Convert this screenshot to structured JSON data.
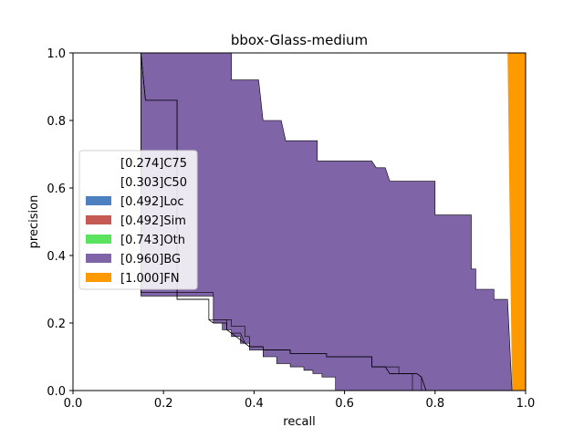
{
  "chart_data": {
    "type": "area",
    "title": "bbox-Glass-medium",
    "xlabel": "recall",
    "ylabel": "precision",
    "xlim": [
      0.0,
      1.0
    ],
    "ylim": [
      0.0,
      1.0
    ],
    "xticks": [
      "0.0",
      "0.2",
      "0.4",
      "0.6",
      "0.8",
      "1.0"
    ],
    "yticks": [
      "0.0",
      "0.2",
      "0.4",
      "0.6",
      "0.8",
      "1.0"
    ],
    "grid": false,
    "legend_position": "center-left",
    "series": [
      {
        "name": "[0.274]C75",
        "color": "#ffffff",
        "points": [
          [
            0.0,
            1.0
          ],
          [
            0.15,
            1.0
          ],
          [
            0.15,
            0.28
          ],
          [
            0.31,
            0.28
          ],
          [
            0.31,
            0.2
          ],
          [
            0.33,
            0.2
          ],
          [
            0.33,
            0.18
          ],
          [
            0.35,
            0.18
          ],
          [
            0.35,
            0.16
          ],
          [
            0.37,
            0.16
          ],
          [
            0.37,
            0.14
          ],
          [
            0.39,
            0.14
          ],
          [
            0.39,
            0.12
          ],
          [
            0.42,
            0.12
          ],
          [
            0.42,
            0.1
          ],
          [
            0.45,
            0.1
          ],
          [
            0.45,
            0.08
          ],
          [
            0.48,
            0.08
          ],
          [
            0.48,
            0.07
          ],
          [
            0.51,
            0.07
          ],
          [
            0.51,
            0.06
          ],
          [
            0.53,
            0.06
          ],
          [
            0.53,
            0.05
          ],
          [
            0.55,
            0.05
          ],
          [
            0.55,
            0.04
          ],
          [
            0.58,
            0.04
          ],
          [
            0.58,
            0.0
          ]
        ]
      },
      {
        "name": "[0.303]C50",
        "color": "#ffffff",
        "points": [
          [
            0.0,
            1.0
          ],
          [
            0.15,
            1.0
          ],
          [
            0.15,
            0.29
          ],
          [
            0.31,
            0.29
          ],
          [
            0.31,
            0.21
          ],
          [
            0.35,
            0.21
          ],
          [
            0.35,
            0.19
          ],
          [
            0.38,
            0.19
          ],
          [
            0.38,
            0.16
          ],
          [
            0.39,
            0.16
          ],
          [
            0.39,
            0.13
          ],
          [
            0.42,
            0.13
          ],
          [
            0.42,
            0.12
          ],
          [
            0.48,
            0.12
          ],
          [
            0.48,
            0.11
          ],
          [
            0.56,
            0.11
          ],
          [
            0.56,
            0.1
          ],
          [
            0.66,
            0.1
          ],
          [
            0.66,
            0.07
          ],
          [
            0.72,
            0.07
          ],
          [
            0.72,
            0.05
          ],
          [
            0.75,
            0.05
          ],
          [
            0.75,
            0.0
          ]
        ]
      },
      {
        "name": "[0.492]Loc",
        "color": "#4c80bf",
        "points": [
          [
            0.0,
            1.0
          ],
          [
            0.15,
            1.0
          ],
          [
            0.16,
            0.86
          ],
          [
            0.23,
            0.86
          ],
          [
            0.23,
            0.27
          ],
          [
            0.3,
            0.27
          ],
          [
            0.3,
            0.21
          ],
          [
            0.31,
            0.2
          ],
          [
            0.34,
            0.2
          ],
          [
            0.34,
            0.18
          ],
          [
            0.35,
            0.17
          ],
          [
            0.36,
            0.16
          ],
          [
            0.37,
            0.15
          ],
          [
            0.38,
            0.14
          ],
          [
            0.39,
            0.13
          ],
          [
            0.42,
            0.13
          ],
          [
            0.42,
            0.12
          ],
          [
            0.48,
            0.12
          ],
          [
            0.48,
            0.11
          ],
          [
            0.56,
            0.11
          ],
          [
            0.56,
            0.1
          ],
          [
            0.66,
            0.1
          ],
          [
            0.66,
            0.07
          ],
          [
            0.69,
            0.07
          ],
          [
            0.7,
            0.05
          ],
          [
            0.76,
            0.05
          ],
          [
            0.77,
            0.04
          ],
          [
            0.78,
            0.0
          ]
        ]
      },
      {
        "name": "[0.492]Sim",
        "color": "#c55a54",
        "points": [
          [
            0.0,
            1.0
          ],
          [
            0.15,
            1.0
          ],
          [
            0.16,
            0.86
          ],
          [
            0.23,
            0.86
          ],
          [
            0.23,
            0.27
          ],
          [
            0.3,
            0.27
          ],
          [
            0.3,
            0.21
          ],
          [
            0.31,
            0.2
          ],
          [
            0.34,
            0.2
          ],
          [
            0.34,
            0.18
          ],
          [
            0.35,
            0.17
          ],
          [
            0.36,
            0.16
          ],
          [
            0.37,
            0.15
          ],
          [
            0.38,
            0.14
          ],
          [
            0.39,
            0.13
          ],
          [
            0.42,
            0.13
          ],
          [
            0.42,
            0.12
          ],
          [
            0.48,
            0.12
          ],
          [
            0.48,
            0.11
          ],
          [
            0.56,
            0.11
          ],
          [
            0.56,
            0.1
          ],
          [
            0.66,
            0.1
          ],
          [
            0.66,
            0.07
          ],
          [
            0.69,
            0.07
          ],
          [
            0.7,
            0.05
          ],
          [
            0.76,
            0.05
          ],
          [
            0.77,
            0.04
          ],
          [
            0.78,
            0.0
          ]
        ]
      },
      {
        "name": "[0.743]Oth",
        "color": "#5be35f",
        "points": [
          [
            0.0,
            1.0
          ],
          [
            0.15,
            1.0
          ],
          [
            0.16,
            0.86
          ],
          [
            0.23,
            0.86
          ],
          [
            0.23,
            0.27
          ],
          [
            0.3,
            0.27
          ],
          [
            0.3,
            0.21
          ],
          [
            0.34,
            0.21
          ],
          [
            0.34,
            0.18
          ],
          [
            0.35,
            0.17
          ],
          [
            0.37,
            0.17
          ],
          [
            0.38,
            0.14
          ],
          [
            0.39,
            0.13
          ],
          [
            0.42,
            0.13
          ],
          [
            0.42,
            0.12
          ],
          [
            0.48,
            0.12
          ],
          [
            0.48,
            0.11
          ],
          [
            0.56,
            0.11
          ],
          [
            0.56,
            0.1
          ],
          [
            0.66,
            0.1
          ],
          [
            0.66,
            0.07
          ],
          [
            0.69,
            0.07
          ],
          [
            0.7,
            0.05
          ],
          [
            0.76,
            0.05
          ],
          [
            0.77,
            0.04
          ],
          [
            0.77,
            0.0
          ],
          [
            0.96,
            0.0
          ],
          [
            0.96,
            0.0
          ]
        ]
      },
      {
        "name": "[0.960]BG",
        "color": "#8064a8",
        "points": [
          [
            0.0,
            1.0
          ],
          [
            0.35,
            1.0
          ],
          [
            0.35,
            0.92
          ],
          [
            0.39,
            0.92
          ],
          [
            0.39,
            0.92
          ],
          [
            0.41,
            0.92
          ],
          [
            0.42,
            0.8
          ],
          [
            0.46,
            0.8
          ],
          [
            0.47,
            0.74
          ],
          [
            0.54,
            0.74
          ],
          [
            0.54,
            0.68
          ],
          [
            0.66,
            0.68
          ],
          [
            0.67,
            0.66
          ],
          [
            0.69,
            0.66
          ],
          [
            0.7,
            0.62
          ],
          [
            0.8,
            0.62
          ],
          [
            0.8,
            0.52
          ],
          [
            0.88,
            0.52
          ],
          [
            0.88,
            0.36
          ],
          [
            0.89,
            0.36
          ],
          [
            0.89,
            0.3
          ],
          [
            0.93,
            0.3
          ],
          [
            0.93,
            0.27
          ],
          [
            0.96,
            0.27
          ],
          [
            0.97,
            0.0
          ]
        ]
      },
      {
        "name": "[1.000]FN",
        "color": "#ff9900",
        "points": [
          [
            0.96,
            1.0
          ],
          [
            1.0,
            1.0
          ],
          [
            1.0,
            0.0
          ],
          [
            0.97,
            0.0
          ]
        ]
      }
    ]
  }
}
